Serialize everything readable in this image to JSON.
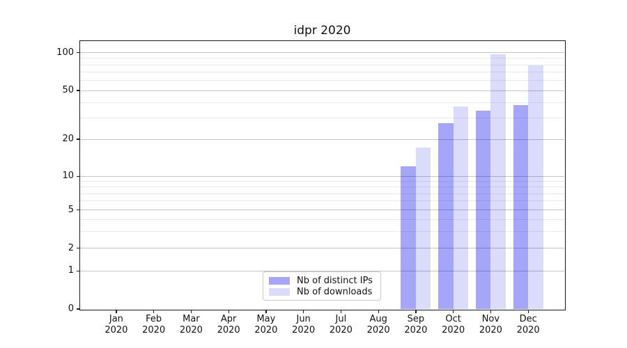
{
  "chart_data": {
    "type": "bar",
    "title": "idpr 2020",
    "categories": [
      "Jan 2020",
      "Feb 2020",
      "Mar 2020",
      "Apr 2020",
      "May 2020",
      "Jun 2020",
      "Jul 2020",
      "Aug 2020",
      "Sep 2020",
      "Oct 2020",
      "Nov 2020",
      "Dec 2020"
    ],
    "series": [
      {
        "name": "Nb of distinct IPs",
        "color": "rgba(0,0,235,0.35)",
        "values": [
          0,
          0,
          0,
          0,
          0,
          0,
          0,
          0,
          12,
          27,
          34,
          38
        ]
      },
      {
        "name": "Nb of downloads",
        "color": "rgba(0,0,235,0.14)",
        "values": [
          0,
          0,
          0,
          0,
          0,
          0,
          0,
          0,
          17,
          37,
          97,
          79
        ]
      }
    ],
    "yscale": "symlog",
    "yticks": [
      0,
      1,
      2,
      5,
      10,
      20,
      50,
      100
    ],
    "minor_gridlines": [
      3,
      4,
      6,
      7,
      8,
      9,
      30,
      40,
      60,
      70,
      80,
      90
    ],
    "ylim": [
      0,
      120
    ],
    "grid": true,
    "legend_position": "lower center-left"
  },
  "colors": {
    "grid_major": "#c4c4c4",
    "grid_minor": "#eaeaea",
    "axis": "#1a1a1a",
    "background": "#ffffff"
  }
}
